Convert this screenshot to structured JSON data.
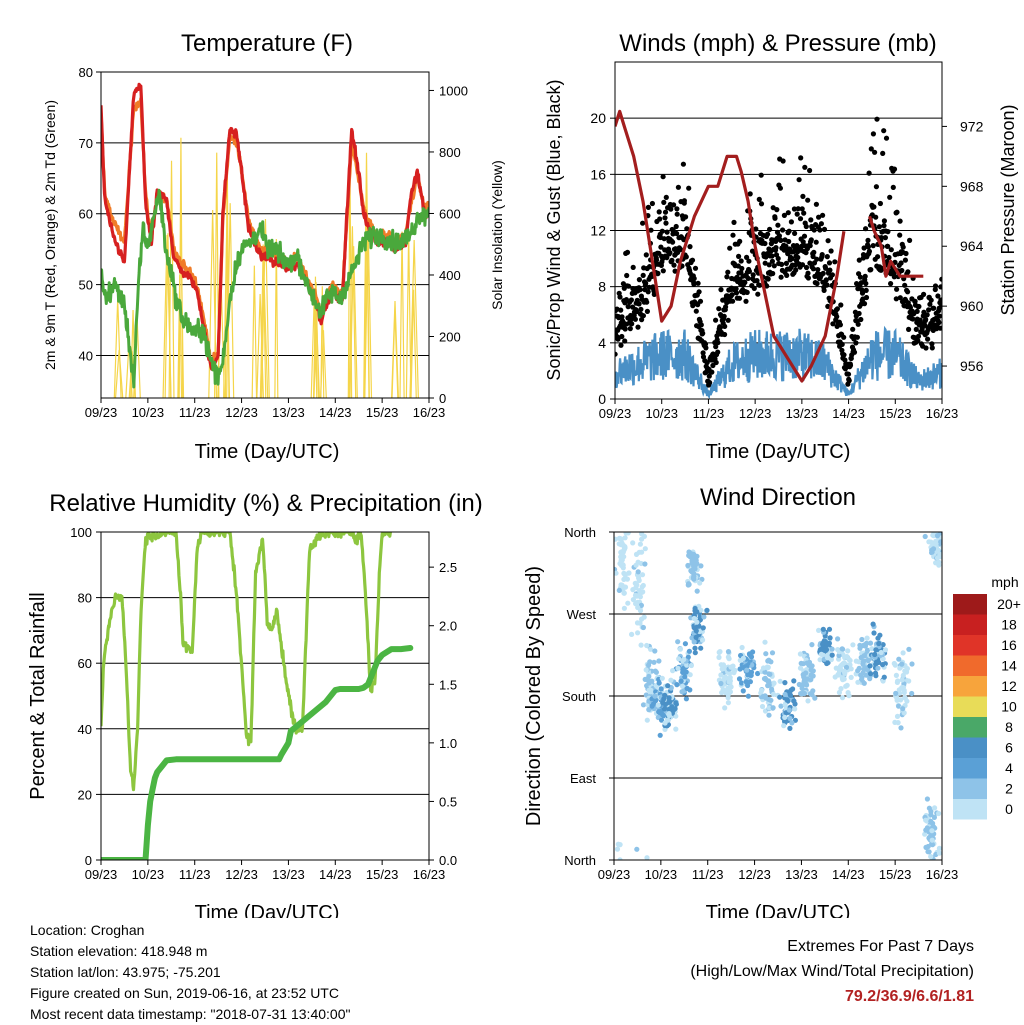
{
  "panels": {
    "temperature": {
      "title": "Temperature (F)",
      "ylabel_left": "2m & 9m T (Red, Orange) & 2m Td (Green)",
      "ylabel_right": "Solar Insolation (Yellow)",
      "xlabel": "Time (Day/UTC)"
    },
    "winds": {
      "title": "Winds (mph) & Pressure (mb)",
      "ylabel_left": "Sonic/Prop Wind & Gust (Blue, Black)",
      "ylabel_right": "Station Pressure (Maroon)",
      "xlabel": "Time (Day/UTC)"
    },
    "humidity": {
      "title": "Relative Humidity (%) & Precipitation (in)",
      "ylabel_left": "Percent & Total Rainfall",
      "xlabel": "Time (Day/UTC)"
    },
    "direction": {
      "title": "Wind Direction",
      "ylabel_left": "Direction (Colored By Speed)",
      "xlabel": "Time (Day/UTC)",
      "legend_unit": "mph",
      "legend_labels": [
        "20+",
        "18",
        "16",
        "14",
        "12",
        "10",
        "8",
        "6",
        "4",
        "2",
        "0"
      ],
      "legend_colors": [
        "#9e1a1a",
        "#c82020",
        "#e03428",
        "#f06a2c",
        "#f7a43c",
        "#e8dc58",
        "#4aa868",
        "#4a90c6",
        "#5aa0d6",
        "#8ec3e8",
        "#bfe3f5"
      ]
    }
  },
  "info": {
    "location": "Location: Croghan",
    "elevation": "Station elevation: 418.948 m",
    "latlon": "Station lat/lon: 43.975; -75.201",
    "created": "Figure created on Sun, 2019-06-16, at 23:52 UTC",
    "recent": "Most recent data timestamp: \"2018-07-31 13:40:00\""
  },
  "extremes": {
    "heading": "Extremes For Past 7 Days",
    "subheading": "(High/Low/Max Wind/Total Precipitation)",
    "values": "79.2/36.9/6.6/1.81"
  },
  "chart_data": [
    {
      "type": "line",
      "title": "Temperature (F)",
      "xlabel": "Time (Day/UTC)",
      "ylabel": "2m & 9m T (Red, Orange) & 2m Td (Green)",
      "y2label": "Solar Insolation (Yellow)",
      "xticks": [
        "09/23",
        "10/23",
        "11/23",
        "12/23",
        "13/23",
        "14/23",
        "15/23",
        "16/23"
      ],
      "ylim": [
        34,
        80
      ],
      "yticks": [
        40,
        50,
        60,
        70,
        80
      ],
      "y2lim": [
        0,
        1060
      ],
      "y2ticks": [
        0,
        200,
        400,
        600,
        800,
        1000
      ],
      "grid": true,
      "series": [
        {
          "color": "#d62020",
          "x": [
            0,
            0.08,
            0.25,
            0.5,
            0.7,
            0.85,
            0.95,
            1.0,
            1.08,
            1.2,
            1.4,
            1.55,
            1.7,
            1.9,
            2.05,
            2.2,
            2.35,
            2.5,
            2.6,
            2.75,
            2.9,
            3.0,
            3.15,
            3.4,
            3.55,
            3.7,
            3.85,
            4.0,
            4.2,
            4.4,
            4.55,
            4.7,
            4.8,
            4.95,
            5.05,
            5.15,
            5.25,
            5.35,
            5.5,
            5.6,
            5.7,
            5.8,
            5.9,
            6.0,
            6.15,
            6.3,
            6.5,
            6.6,
            6.75,
            6.9,
            7.0
          ],
          "y": [
            75,
            62,
            57,
            53,
            77,
            78,
            62,
            59,
            56,
            63,
            62,
            54,
            52,
            51,
            49,
            44,
            38,
            40,
            60,
            72,
            71,
            66,
            58,
            54,
            54,
            53,
            53,
            52,
            53,
            50,
            48,
            45,
            47,
            49,
            48,
            48,
            60,
            72,
            66,
            60,
            58,
            57,
            56,
            56,
            56,
            55,
            56,
            62,
            66,
            60,
            60
          ]
        },
        {
          "color": "#f07c28",
          "x": [
            0,
            0.08,
            0.25,
            0.5,
            0.7,
            0.85,
            0.95,
            1.0,
            1.08,
            1.2,
            1.4,
            1.55,
            1.7,
            1.9,
            2.05,
            2.2,
            2.35,
            2.5,
            2.6,
            2.75,
            2.9,
            3.0,
            3.15,
            3.4,
            3.55,
            3.7,
            3.85,
            4.0,
            4.2,
            4.4,
            4.55,
            4.7,
            4.8,
            4.95,
            5.05,
            5.15,
            5.25,
            5.35,
            5.5,
            5.6,
            5.7,
            5.8,
            5.9,
            6.0,
            6.15,
            6.3,
            6.5,
            6.6,
            6.75,
            6.9,
            7.0
          ],
          "y": [
            74,
            63,
            59,
            56,
            75,
            76,
            63,
            60,
            57,
            63,
            62,
            55,
            53,
            52,
            50,
            45,
            39,
            40,
            59,
            71,
            70,
            66,
            59,
            55,
            55,
            54,
            54,
            53,
            54,
            51,
            49,
            46,
            48,
            50,
            49,
            49,
            59,
            70,
            65,
            61,
            59,
            58,
            57,
            57,
            57,
            56,
            57,
            61,
            65,
            61,
            61
          ]
        },
        {
          "color": "#4aa83c",
          "x": [
            0,
            0.1,
            0.3,
            0.5,
            0.6,
            0.7,
            0.8,
            0.9,
            1.0,
            1.1,
            1.25,
            1.4,
            1.5,
            1.6,
            1.75,
            1.9,
            2.0,
            2.1,
            2.2,
            2.35,
            2.5,
            2.6,
            2.75,
            2.9,
            3.0,
            3.2,
            3.4,
            3.55,
            3.7,
            3.85,
            4.0,
            4.2,
            4.4,
            4.55,
            4.7,
            4.8,
            4.95,
            5.1,
            5.3,
            5.5,
            5.6,
            5.8,
            6.0,
            6.2,
            6.4,
            6.6,
            6.8,
            7.0
          ],
          "y": [
            52,
            48,
            50,
            47,
            42,
            36,
            50,
            58,
            55,
            59,
            63,
            54,
            52,
            48,
            45,
            44,
            43,
            44,
            43,
            39,
            37,
            39,
            48,
            53,
            55,
            56,
            58,
            55,
            55,
            54,
            53,
            54,
            50,
            48,
            46,
            48,
            49,
            48,
            51,
            54,
            56,
            57,
            57,
            56,
            56,
            57,
            60,
            60
          ]
        }
      ],
      "insolation": {
        "color": "#f5d54a",
        "peaks": [
          {
            "x": 0.55,
            "value": 350
          },
          {
            "x": 1.55,
            "value": 950
          },
          {
            "x": 2.55,
            "value": 1010
          },
          {
            "x": 3.55,
            "value": 860
          },
          {
            "x": 4.55,
            "value": 500
          },
          {
            "x": 5.55,
            "value": 800
          },
          {
            "x": 6.55,
            "value": 600
          }
        ]
      }
    },
    {
      "type": "scatter",
      "title": "Winds (mph) & Pressure (mb)",
      "xlabel": "Time (Day/UTC)",
      "ylabel": "Sonic/Prop Wind & Gust (Blue, Black)",
      "y2label": "Station Pressure (Maroon)",
      "xticks": [
        "09/23",
        "10/23",
        "11/23",
        "12/23",
        "13/23",
        "14/23",
        "15/23",
        "16/23"
      ],
      "ylim": [
        0,
        24
      ],
      "yticks": [
        0,
        4,
        8,
        12,
        16,
        20
      ],
      "y2lim": [
        953.8,
        976.3
      ],
      "y2ticks": [
        956,
        960,
        964,
        968,
        972
      ],
      "grid": true,
      "gust_envelope": {
        "color": "#000000",
        "x": [
          0,
          0.5,
          1.0,
          1.5,
          2.0,
          2.5,
          3.0,
          3.5,
          4.0,
          4.5,
          5.0,
          5.5,
          6.0,
          6.5,
          7.0
        ],
        "max": [
          9,
          12,
          17,
          18,
          2,
          14,
          16,
          19,
          18,
          17,
          2,
          22,
          18,
          8,
          10
        ],
        "typical": [
          3,
          5,
          8,
          9,
          0.5,
          6,
          7,
          8,
          8,
          7,
          0.5,
          9,
          7,
          3,
          4
        ]
      },
      "wind_envelope": {
        "color": "#4a90c6",
        "x": [
          0,
          0.5,
          1.0,
          1.5,
          2.0,
          2.5,
          3.0,
          3.5,
          4.0,
          4.5,
          5.0,
          5.5,
          6.0,
          6.5,
          7.0
        ],
        "max": [
          3,
          4,
          5,
          5,
          0.5,
          4,
          5,
          5,
          5,
          4,
          0.5,
          5,
          5,
          2,
          3
        ]
      },
      "pressure": {
        "color": "#a31e1e",
        "segments": [
          {
            "x": [
              0,
              0.1,
              0.2,
              0.4,
              0.6,
              0.8,
              1.0,
              1.2,
              1.4,
              1.5,
              1.7,
              2.0,
              2.2,
              2.4,
              2.6,
              2.7,
              2.85,
              3.0,
              3.2,
              3.4,
              3.6,
              3.8,
              4.0,
              4.2,
              4.5,
              4.75,
              4.9
            ],
            "y": [
              972,
              973,
              972,
              970,
              967,
              963,
              959,
              960,
              963,
              964,
              966,
              968,
              968,
              970,
              970,
              969,
              967,
              964,
              961,
              958,
              957,
              956,
              955,
              956,
              958,
              962,
              965
            ]
          },
          {
            "x": [
              5.45,
              5.55,
              5.7,
              5.8,
              5.9,
              6.1,
              6.3,
              6.5,
              6.6
            ],
            "y": [
              966,
              965,
              964,
              962,
              963,
              962,
              962,
              962,
              962
            ]
          }
        ]
      }
    },
    {
      "type": "line",
      "title": "Relative Humidity (%) & Precipitation (in)",
      "xlabel": "Time (Day/UTC)",
      "ylabel": "Percent & Total Rainfall",
      "xticks": [
        "09/23",
        "10/23",
        "11/23",
        "12/23",
        "13/23",
        "14/23",
        "15/23",
        "16/23"
      ],
      "ylim": [
        0,
        100
      ],
      "yticks": [
        0,
        20,
        40,
        60,
        80,
        100
      ],
      "y2lim": [
        0,
        2.8
      ],
      "y2ticks": [
        0.0,
        0.5,
        1.0,
        1.5,
        2.0,
        2.5
      ],
      "grid": true,
      "series": [
        {
          "color": "#8dc63f",
          "x": [
            0,
            0.05,
            0.15,
            0.3,
            0.45,
            0.55,
            0.62,
            0.7,
            0.78,
            0.85,
            0.95,
            1.05,
            1.15,
            1.3,
            1.45,
            1.6,
            1.7,
            1.75,
            1.85,
            1.95,
            2.05,
            2.15,
            2.3,
            2.45,
            2.6,
            2.75,
            2.9,
            3.0,
            3.1,
            3.2,
            3.3,
            3.45,
            3.55,
            3.65,
            3.75,
            3.85,
            4.0,
            4.15,
            4.3,
            4.45,
            4.6,
            4.75,
            4.9,
            5.05,
            5.15,
            5.25,
            5.35,
            5.45,
            5.55,
            5.65,
            5.75,
            5.85,
            5.95,
            6.0,
            6.2
          ],
          "y": [
            42,
            58,
            70,
            80,
            80,
            55,
            30,
            22,
            40,
            75,
            98,
            99,
            99,
            100,
            100,
            100,
            80,
            66,
            65,
            64,
            95,
            100,
            100,
            100,
            100,
            100,
            80,
            60,
            38,
            36,
            88,
            98,
            72,
            70,
            77,
            65,
            50,
            40,
            40,
            95,
            98,
            99,
            100,
            100,
            100,
            100,
            100,
            98,
            100,
            80,
            52,
            55,
            90,
            100,
            100
          ]
        },
        {
          "color": "#4bb543",
          "x": [
            0,
            0.5,
            0.95,
            1.0,
            1.05,
            1.1,
            1.15,
            1.2,
            1.3,
            1.4,
            1.6,
            2.0,
            3.0,
            3.8,
            3.85,
            4.0,
            4.05,
            4.2,
            4.5,
            4.8,
            5.0,
            5.1,
            5.5,
            5.6,
            5.7,
            5.8,
            5.9,
            6.0,
            6.2,
            6.4,
            6.6
          ],
          "y": [
            0,
            0,
            0,
            0.3,
            0.5,
            0.6,
            0.7,
            0.75,
            0.8,
            0.85,
            0.86,
            0.86,
            0.86,
            0.86,
            0.9,
            1.0,
            1.1,
            1.15,
            1.25,
            1.35,
            1.45,
            1.46,
            1.46,
            1.47,
            1.5,
            1.6,
            1.7,
            1.75,
            1.8,
            1.8,
            1.81
          ]
        }
      ]
    },
    {
      "type": "scatter",
      "title": "Wind Direction",
      "xlabel": "Time (Day/UTC)",
      "ylabel": "Direction (Colored By Speed)",
      "xticks": [
        "09/23",
        "10/23",
        "11/23",
        "12/23",
        "13/23",
        "14/23",
        "15/23",
        "16/23"
      ],
      "yticks": [
        "North",
        "East",
        "South",
        "West",
        "North"
      ],
      "ylim": [
        0,
        360
      ],
      "grid": true,
      "legend": {
        "title": "mph",
        "labels": [
          "20+",
          "18",
          "16",
          "14",
          "12",
          "10",
          "8",
          "6",
          "4",
          "2",
          "0"
        ]
      },
      "clusters": [
        {
          "x": 0.2,
          "dir": 330,
          "spread": 50,
          "color": "#bfe3f5"
        },
        {
          "x": 0.55,
          "dir": 300,
          "spread": 70,
          "color": "#bfe3f5"
        },
        {
          "x": 0.8,
          "dir": 200,
          "spread": 40,
          "color": "#8ec3e8"
        },
        {
          "x": 1.0,
          "dir": 170,
          "spread": 30,
          "color": "#5aa0d6"
        },
        {
          "x": 1.2,
          "dir": 165,
          "spread": 25,
          "color": "#4a90c6"
        },
        {
          "x": 1.5,
          "dir": 205,
          "spread": 30,
          "color": "#5aa0d6"
        },
        {
          "x": 1.8,
          "dir": 255,
          "spread": 25,
          "color": "#4a90c6"
        },
        {
          "x": 1.7,
          "dir": 320,
          "spread": 20,
          "color": "#8ec3e8"
        },
        {
          "x": 2.4,
          "dir": 200,
          "spread": 35,
          "color": "#bfe3f5"
        },
        {
          "x": 2.85,
          "dir": 210,
          "spread": 25,
          "color": "#5aa0d6"
        },
        {
          "x": 3.3,
          "dir": 190,
          "spread": 35,
          "color": "#8ec3e8"
        },
        {
          "x": 3.7,
          "dir": 175,
          "spread": 30,
          "color": "#4a90c6"
        },
        {
          "x": 4.1,
          "dir": 205,
          "spread": 30,
          "color": "#8ec3e8"
        },
        {
          "x": 4.5,
          "dir": 235,
          "spread": 20,
          "color": "#4a90c6"
        },
        {
          "x": 4.9,
          "dir": 210,
          "spread": 30,
          "color": "#bfe3f5"
        },
        {
          "x": 5.35,
          "dir": 215,
          "spread": 25,
          "color": "#8ec3e8"
        },
        {
          "x": 5.65,
          "dir": 225,
          "spread": 25,
          "color": "#4a90c6"
        },
        {
          "x": 6.15,
          "dir": 190,
          "spread": 40,
          "color": "#bfe3f5"
        },
        {
          "x": 6.75,
          "dir": 30,
          "spread": 35,
          "color": "#8ec3e8"
        },
        {
          "x": 6.9,
          "dir": 345,
          "spread": 25,
          "color": "#bfe3f5"
        }
      ]
    }
  ]
}
